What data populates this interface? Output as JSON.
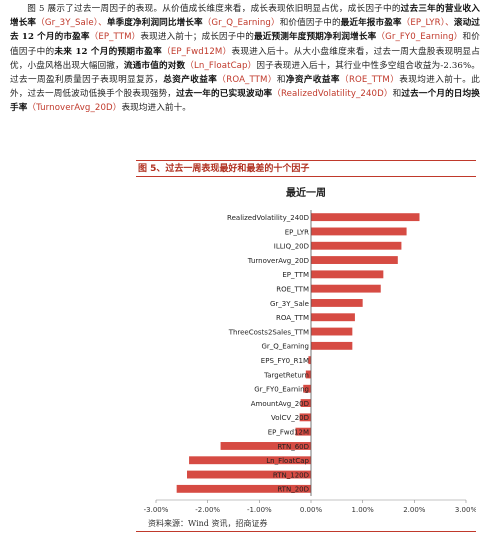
{
  "paragraph": {
    "s1": "图 5 展示了过去一周因子的表现。从价值成长维度来看，成长表现依旧明显占优，成长因子中的",
    "s2": "过去三年的营业收入增长率",
    "s3": "（Gr_3Y_Sale）、",
    "s4": "单季度净利润同比增长率",
    "s5": "（Gr_Q_Earning）",
    "s6": "和价值因子中的",
    "s7": "最近年报市盈率",
    "s8": "（EP_LYR）、",
    "s9": "滚动过去 12 个月的市盈率",
    "s10": "（EP_TTM）",
    "s11": "表现进入前十；成长因子中的",
    "s12": "最近预测年度预期净利润增长率",
    "s13": "（Gr_FY0_Earning）",
    "s14": "和价值因子中的",
    "s15": "未来 12 个月的预期市盈率",
    "s16": "（EP_Fwd12M）",
    "s17": "表现进入后十。从大小盘维度来看，过去一周大盘股表现明显占优，小盘风格出现大幅回撤，",
    "s18": "流通市值的对数",
    "s19": "（Ln_FloatCap）",
    "s20": "因子表现进入后十，其行业中性多空组合收益为-2.36%。过去一周盈利质量因子表现明显复苏，",
    "s21": "总资产收益率",
    "s22": "（ROA_TTM）",
    "s23": "和",
    "s24": "净资产收益率",
    "s25": "（ROE_TTM）",
    "s26": "表现均进入前十。此外，过去一周低波动低换手个股表现强势，",
    "s27": "过去一年的已实现波动率",
    "s28": "（RealizedVolatility_240D）",
    "s29": "和",
    "s30": "过去一个月的日均换手率",
    "s31": "（TurnoverAvg_20D）",
    "s32": "表现均进入前十。"
  },
  "figure": {
    "title": "图 5、过去一周表现最好和最差的十个因子",
    "source": "资料来源：Wind 资讯，招商证券"
  },
  "chart_data": {
    "type": "bar",
    "orientation": "horizontal",
    "title": "最近一周",
    "categories": [
      "RealizedVolatility_240D",
      "EP_LYR",
      "ILLIQ_20D",
      "TurnoverAvg_20D",
      "EP_TTM",
      "ROE_TTM",
      "Gr_3Y_Sale",
      "ROA_TTM",
      "ThreeCosts2Sales_TTM",
      "Gr_Q_Earning",
      "EPS_FY0_R1M",
      "TargetReturn",
      "Gr_FY0_Earning",
      "AmountAvg_20D",
      "VolCV_20D",
      "EP_Fwd12M",
      "RTN_60D",
      "Ln_FloatCap",
      "RTN_120D",
      "RTN_20D"
    ],
    "values": [
      2.1,
      1.85,
      1.75,
      1.68,
      1.4,
      1.35,
      1.0,
      0.85,
      0.8,
      0.8,
      -0.05,
      -0.1,
      -0.15,
      -0.2,
      -0.22,
      -0.3,
      -1.75,
      -2.36,
      -2.4,
      -2.6
    ],
    "xlim": [
      -3.0,
      3.0
    ],
    "xticks": [
      "-3.00%",
      "-2.00%",
      "-1.00%",
      "0.00%",
      "1.00%",
      "2.00%",
      "3.00%"
    ],
    "bar_color": "#d64b43",
    "grid": false
  }
}
